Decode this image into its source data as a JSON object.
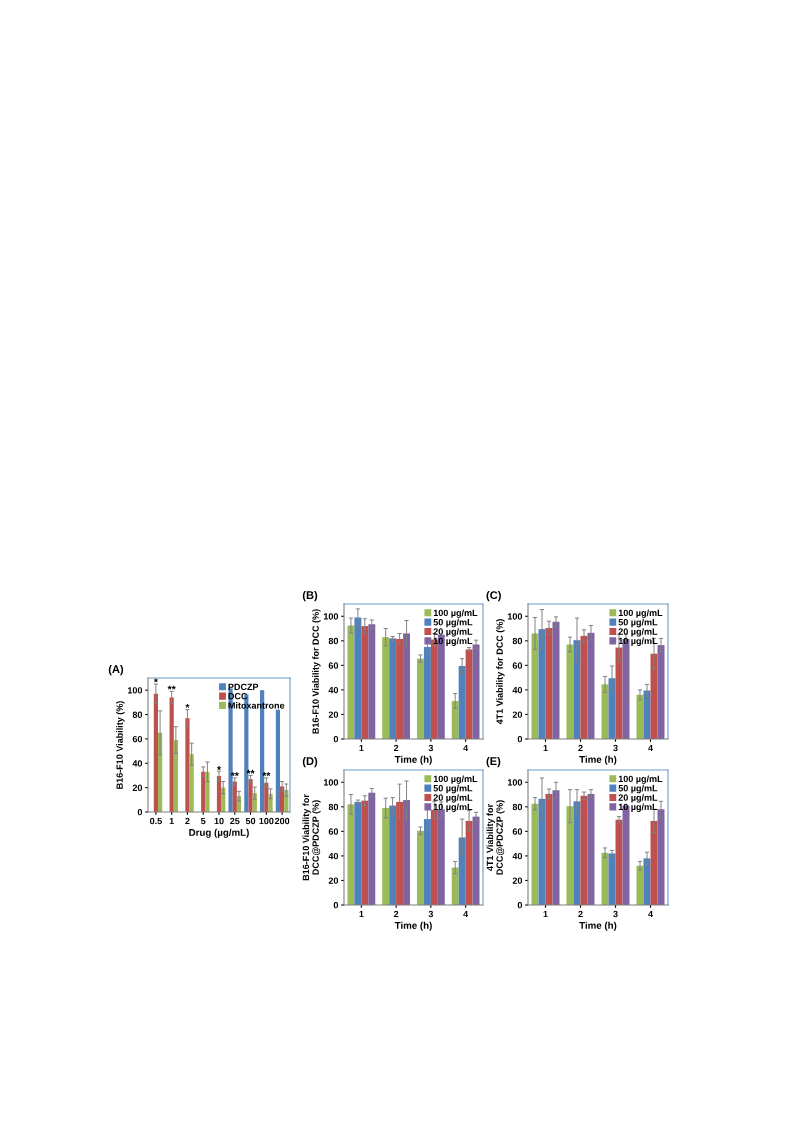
{
  "chart_data": [
    {
      "type": "bar",
      "title": "(A)",
      "xlabel": "Drug (µg/mL)",
      "ylabel": "B16-F10 Viability (%)",
      "categories": [
        "0.5",
        "1",
        "2",
        "5",
        "10",
        "25",
        "50",
        "100",
        "200"
      ],
      "ylim": [
        0,
        110
      ],
      "yticks": [
        0,
        20,
        40,
        60,
        80,
        100
      ],
      "legend": "top right",
      "grid": false,
      "series": [
        {
          "name": "PDCZP",
          "color": "#4f81bd",
          "values": [
            null,
            null,
            null,
            null,
            null,
            101.5,
            96.5,
            100,
            84
          ]
        },
        {
          "name": "DCC",
          "color": "#c0504d",
          "values": [
            97,
            94,
            77,
            33,
            29.5,
            25,
            27,
            24,
            21
          ],
          "errors": [
            8,
            5,
            7,
            4,
            4,
            3,
            3,
            4,
            4
          ]
        },
        {
          "name": "Mitoxantrone",
          "color": "#9bbb59",
          "values": [
            65,
            59,
            47.5,
            33,
            20,
            13,
            15.5,
            15,
            18
          ],
          "errors": [
            18,
            11,
            9,
            8,
            5,
            4,
            5,
            4,
            5
          ]
        }
      ],
      "annotations": [
        {
          "text": "*",
          "x": "0.5",
          "y": 106
        },
        {
          "text": "**",
          "x": "1",
          "y": 100
        },
        {
          "text": "*",
          "x": "2",
          "y": 85
        },
        {
          "text": "*",
          "x": "10",
          "y": 34
        },
        {
          "text": "**",
          "x": "25",
          "y": 29
        },
        {
          "text": "**",
          "x": "50",
          "y": 31
        },
        {
          "text": "**",
          "x": "100",
          "y": 29
        }
      ]
    },
    {
      "type": "bar",
      "title": "(B)",
      "xlabel": "Time (h)",
      "ylabel": "B16-F10 Viability for DCC (%)",
      "categories": [
        "1",
        "2",
        "3",
        "4"
      ],
      "ylim": [
        0,
        110
      ],
      "yticks": [
        0,
        20,
        40,
        60,
        80,
        100
      ],
      "legend": "top right",
      "grid": false,
      "series": [
        {
          "name": "100 µg/mL",
          "color": "#9bbb59",
          "values": [
            92.5,
            83,
            65.5,
            31
          ],
          "errors": [
            6,
            7,
            3,
            6
          ]
        },
        {
          "name": "50 µg/mL",
          "color": "#4f81bd",
          "values": [
            99,
            82,
            75,
            59.5
          ],
          "errors": [
            7,
            1.5,
            3,
            6
          ]
        },
        {
          "name": "20 µg/mL",
          "color": "#c0504d",
          "values": [
            92,
            81.5,
            81,
            73
          ],
          "errors": [
            6,
            4.5,
            5,
            1.5
          ]
        },
        {
          "name": "10 µg/mL",
          "color": "#8064a2",
          "values": [
            93.5,
            86,
            85,
            77
          ],
          "errors": [
            3.5,
            10.5,
            null,
            3.5
          ]
        }
      ]
    },
    {
      "type": "bar",
      "title": "(C)",
      "xlabel": "Time (h)",
      "ylabel": "4T1 Viability for DCC (%)",
      "categories": [
        "1",
        "2",
        "3",
        "4"
      ],
      "ylim": [
        0,
        110
      ],
      "yticks": [
        0,
        20,
        40,
        60,
        80,
        100
      ],
      "legend": "top right",
      "grid": false,
      "series": [
        {
          "name": "100 µg/mL",
          "color": "#9bbb59",
          "values": [
            86,
            77,
            44.5,
            36
          ],
          "errors": [
            13,
            6,
            6.5,
            4
          ]
        },
        {
          "name": "50 µg/mL",
          "color": "#4f81bd",
          "values": [
            89.5,
            80.5,
            49.5,
            39.5
          ],
          "errors": [
            16,
            18,
            10,
            5
          ]
        },
        {
          "name": "20 µg/mL",
          "color": "#c0504d",
          "values": [
            90.5,
            84,
            74.5,
            69.5
          ],
          "errors": [
            5.5,
            5,
            11,
            12.5
          ]
        },
        {
          "name": "10 µg/mL",
          "color": "#8064a2",
          "values": [
            95.5,
            86.5,
            81.5,
            76.5
          ],
          "errors": [
            4,
            6,
            4,
            5.5
          ]
        }
      ]
    },
    {
      "type": "bar",
      "title": "(D)",
      "xlabel": "Time (h)",
      "ylabel": "B16-F10 Viability for\nDCC@PDCZP (%)",
      "categories": [
        "1",
        "2",
        "3",
        "4"
      ],
      "ylim": [
        0,
        110
      ],
      "yticks": [
        0,
        20,
        40,
        60,
        80,
        100
      ],
      "legend": "top right",
      "grid": false,
      "series": [
        {
          "name": "100 µg/mL",
          "color": "#9bbb59",
          "values": [
            82,
            79,
            60.5,
            30.5
          ],
          "errors": [
            8,
            8,
            3,
            5
          ]
        },
        {
          "name": "50 µg/mL",
          "color": "#4f81bd",
          "values": [
            84,
            81,
            70,
            55
          ],
          "errors": [
            1.5,
            6.5,
            8,
            15
          ]
        },
        {
          "name": "20 µg/mL",
          "color": "#c0504d",
          "values": [
            85,
            84,
            77.5,
            68.5
          ],
          "errors": [
            4,
            14.5,
            7,
            8.5
          ]
        },
        {
          "name": "10 µg/mL",
          "color": "#8064a2",
          "values": [
            91.5,
            85.5,
            78,
            72
          ],
          "errors": [
            3.5,
            15.5,
            6,
            3.5
          ]
        }
      ]
    },
    {
      "type": "bar",
      "title": "(E)",
      "xlabel": "Time (h)",
      "ylabel": "4T1 Viability for\nDCC@PDCZP (%)",
      "categories": [
        "1",
        "2",
        "3",
        "4"
      ],
      "ylim": [
        0,
        110
      ],
      "yticks": [
        0,
        20,
        40,
        60,
        80,
        100
      ],
      "legend": "top right",
      "grid": false,
      "series": [
        {
          "name": "100 µg/mL",
          "color": "#9bbb59",
          "values": [
            82.5,
            80.5,
            42.5,
            32
          ],
          "errors": [
            5,
            13.5,
            4,
            3.5
          ]
        },
        {
          "name": "50 µg/mL",
          "color": "#4f81bd",
          "values": [
            86.5,
            84.5,
            42,
            38
          ],
          "errors": [
            17,
            9.5,
            2.5,
            5
          ]
        },
        {
          "name": "20 µg/mL",
          "color": "#c0504d",
          "values": [
            90.5,
            89,
            69.5,
            68.5
          ],
          "errors": [
            4,
            3,
            2.5,
            9.5
          ]
        },
        {
          "name": "10 µg/mL",
          "color": "#8064a2",
          "values": [
            93.5,
            90.5,
            81,
            78
          ],
          "errors": [
            6.5,
            3.5,
            null,
            6.5
          ]
        }
      ]
    }
  ]
}
